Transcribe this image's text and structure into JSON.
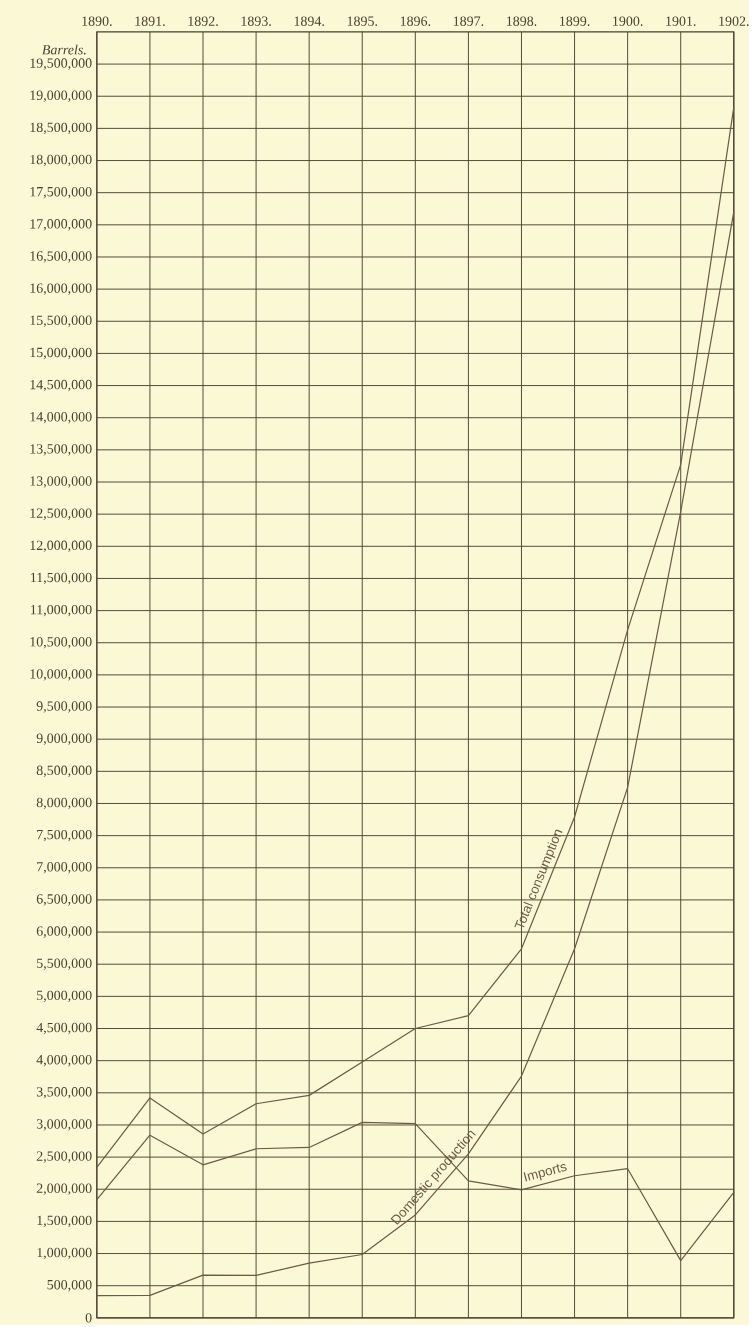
{
  "chart_data": {
    "type": "line",
    "ylabel": "Barrels.",
    "x": [
      1890,
      1891,
      1892,
      1893,
      1894,
      1895,
      1896,
      1897,
      1898,
      1899,
      1900,
      1901,
      1902
    ],
    "series": [
      {
        "name": "Total consumption",
        "color": "#6b5a45",
        "values": [
          2340000,
          3420000,
          2860000,
          3330000,
          3460000,
          3980000,
          4500000,
          4700000,
          5740000,
          7790000,
          10700000,
          13270000,
          18830000
        ]
      },
      {
        "name": "Domestic production",
        "color": "#6b5a45",
        "values": [
          345000,
          350000,
          665000,
          660000,
          850000,
          985000,
          1600000,
          2550000,
          3760000,
          5740000,
          8250000,
          12540000,
          17200000
        ]
      },
      {
        "name": "Imports",
        "color": "#6b5a45",
        "values": [
          1840000,
          2840000,
          2380000,
          2630000,
          2650000,
          3040000,
          3020000,
          2130000,
          1990000,
          2210000,
          2320000,
          890000,
          1950000
        ]
      }
    ],
    "xlim": [
      1890,
      1902
    ],
    "xticks": [
      {
        "value": 1890,
        "label": "1890."
      },
      {
        "value": 1891,
        "label": "1891."
      },
      {
        "value": 1892,
        "label": "1892."
      },
      {
        "value": 1893,
        "label": "1893."
      },
      {
        "value": 1894,
        "label": "1894."
      },
      {
        "value": 1895,
        "label": "1895."
      },
      {
        "value": 1896,
        "label": "1896."
      },
      {
        "value": 1897,
        "label": "1897."
      },
      {
        "value": 1898,
        "label": "1898."
      },
      {
        "value": 1899,
        "label": "1899."
      },
      {
        "value": 1900,
        "label": "1900."
      },
      {
        "value": 1901,
        "label": "1901."
      },
      {
        "value": 1902,
        "label": "1902."
      }
    ],
    "ylim": [
      0,
      20000000
    ],
    "yticks": [
      0,
      {
        "value": 500000,
        "label": "500,000"
      },
      {
        "value": 1000000,
        "label": "1,000,000"
      },
      {
        "value": 1500000,
        "label": "1,500,000"
      },
      {
        "value": 2000000,
        "label": "2,000,000"
      },
      {
        "value": 2500000,
        "label": "2,500,000"
      },
      {
        "value": 3000000,
        "label": "3,000,000"
      },
      {
        "value": 3500000,
        "label": "3,500,000"
      },
      {
        "value": 4000000,
        "label": "4,000,000"
      },
      {
        "value": 4500000,
        "label": "4,500,000"
      },
      {
        "value": 5000000,
        "label": "5,000,000"
      },
      {
        "value": 5500000,
        "label": "5,500,000"
      },
      {
        "value": 6000000,
        "label": "6,000,000"
      },
      {
        "value": 6500000,
        "label": "6,500,000"
      },
      {
        "value": 7000000,
        "label": "7,000,000"
      },
      {
        "value": 7500000,
        "label": "7,500,000"
      },
      {
        "value": 8000000,
        "label": "8,000,000"
      },
      {
        "value": 8500000,
        "label": "8,500,000"
      },
      {
        "value": 9000000,
        "label": "9,000,000"
      },
      {
        "value": 9500000,
        "label": "9,500,000"
      },
      {
        "value": 10000000,
        "label": "10,000,000"
      },
      {
        "value": 10500000,
        "label": "10,500,000"
      },
      {
        "value": 11000000,
        "label": "11,000,000"
      },
      {
        "value": 11500000,
        "label": "11,500,000"
      },
      {
        "value": 12000000,
        "label": "12,000,000"
      },
      {
        "value": 12500000,
        "label": "12,500,000"
      },
      {
        "value": 13000000,
        "label": "13,000,000"
      },
      {
        "value": 13500000,
        "label": "13,500,000"
      },
      {
        "value": 14000000,
        "label": "14,000,000"
      },
      {
        "value": 14500000,
        "label": "14,500,000"
      },
      {
        "value": 15000000,
        "label": "15,000,000"
      },
      {
        "value": 15500000,
        "label": "15,500,000"
      },
      {
        "value": 16000000,
        "label": "16,000,000"
      },
      {
        "value": 16500000,
        "label": "16,500,000"
      },
      {
        "value": 17000000,
        "label": "17,000,000"
      },
      {
        "value": 17500000,
        "label": "17,500,000"
      },
      {
        "value": 18000000,
        "label": "18,000,000"
      },
      {
        "value": 18500000,
        "label": "18,500,000"
      },
      {
        "value": 19000000,
        "label": "19,000,000"
      },
      {
        "value": 19500000,
        "label": "19,500,000"
      }
    ],
    "grid": true,
    "marker": "none",
    "line_style": "solid"
  }
}
